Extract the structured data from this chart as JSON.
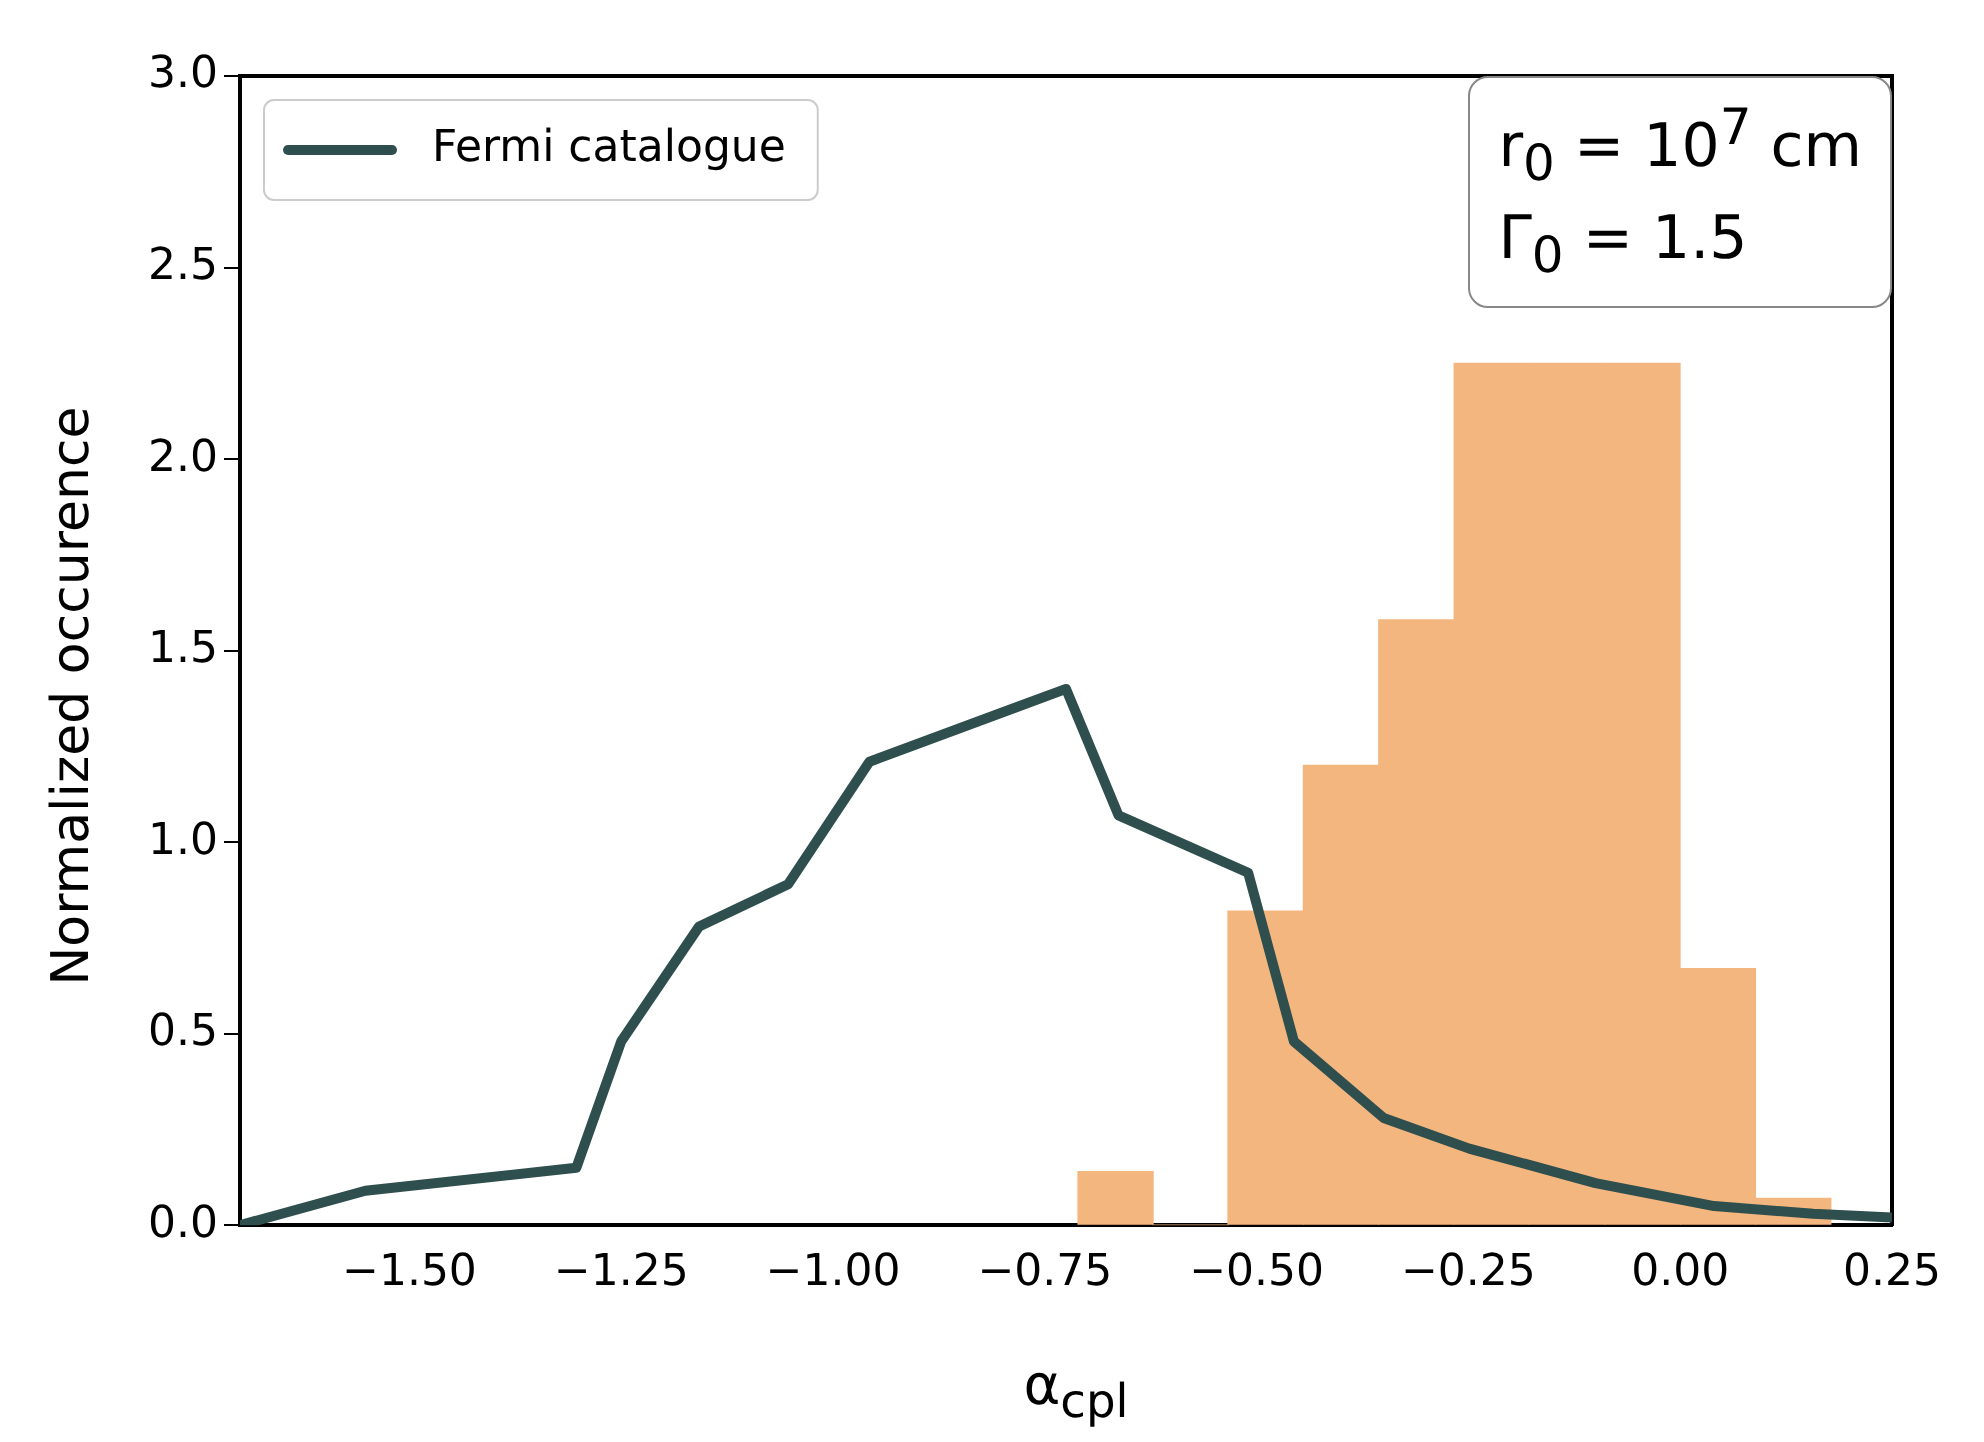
{
  "chart_data": {
    "type": "histogram",
    "xlabel": "α$_{cpl}$",
    "ylabel": "Normalized occurence",
    "bins": [
      -0.711,
      -0.622,
      -0.534,
      -0.445,
      -0.356,
      -0.267,
      -0.178,
      -0.089,
      0.0,
      0.089,
      0.178
    ],
    "values": [
      0.14,
      0,
      0.82,
      1.2,
      1.58,
      2.25,
      2.25,
      2.25,
      0.67,
      0.07
    ],
    "color": "#f4b67f",
    "series": [
      {
        "name": "Fermi catalogue",
        "type": "line",
        "color": "#2f4f4f",
        "x": [
          -1.7,
          -1.552,
          -1.303,
          -1.25,
          -1.158,
          -1.053,
          -0.957,
          -0.725,
          -0.663,
          -0.51,
          -0.456,
          -0.35,
          -0.249,
          -0.1,
          0.04,
          0.157,
          0.25
        ],
        "values": [
          0.0,
          0.09,
          0.15,
          0.48,
          0.78,
          0.89,
          1.21,
          1.4,
          1.07,
          0.92,
          0.48,
          0.28,
          0.2,
          0.11,
          0.05,
          0.03,
          0.02
        ]
      }
    ],
    "xlim": [
      -1.7,
      0.25
    ],
    "xticks": [
      {
        "value": -1.5,
        "label": "−1.50"
      },
      {
        "value": -1.25,
        "label": "−1.25"
      },
      {
        "value": -1.0,
        "label": "−1.00"
      },
      {
        "value": -0.75,
        "label": "−0.75"
      },
      {
        "value": -0.5,
        "label": "−0.50"
      },
      {
        "value": -0.25,
        "label": "−0.25"
      },
      {
        "value": 0,
        "label": "0.00"
      },
      {
        "value": 0.25,
        "label": "0.25"
      }
    ],
    "ylim": [
      0,
      3
    ],
    "yticks": [
      {
        "value": 0,
        "label": "0.0"
      },
      {
        "value": 0.5,
        "label": "0.5"
      },
      {
        "value": 1,
        "label": "1.0"
      },
      {
        "value": 1.5,
        "label": "1.5"
      },
      {
        "value": 2,
        "label": "2.0"
      },
      {
        "value": 2.5,
        "label": "2.5"
      },
      {
        "value": 3,
        "label": "3.0"
      }
    ],
    "annotations": [
      "r$_{0}$ = 10$^{7}$ cm",
      "Γ$_{0}$ = 1.5"
    ],
    "legend": "top left",
    "grid": false
  }
}
